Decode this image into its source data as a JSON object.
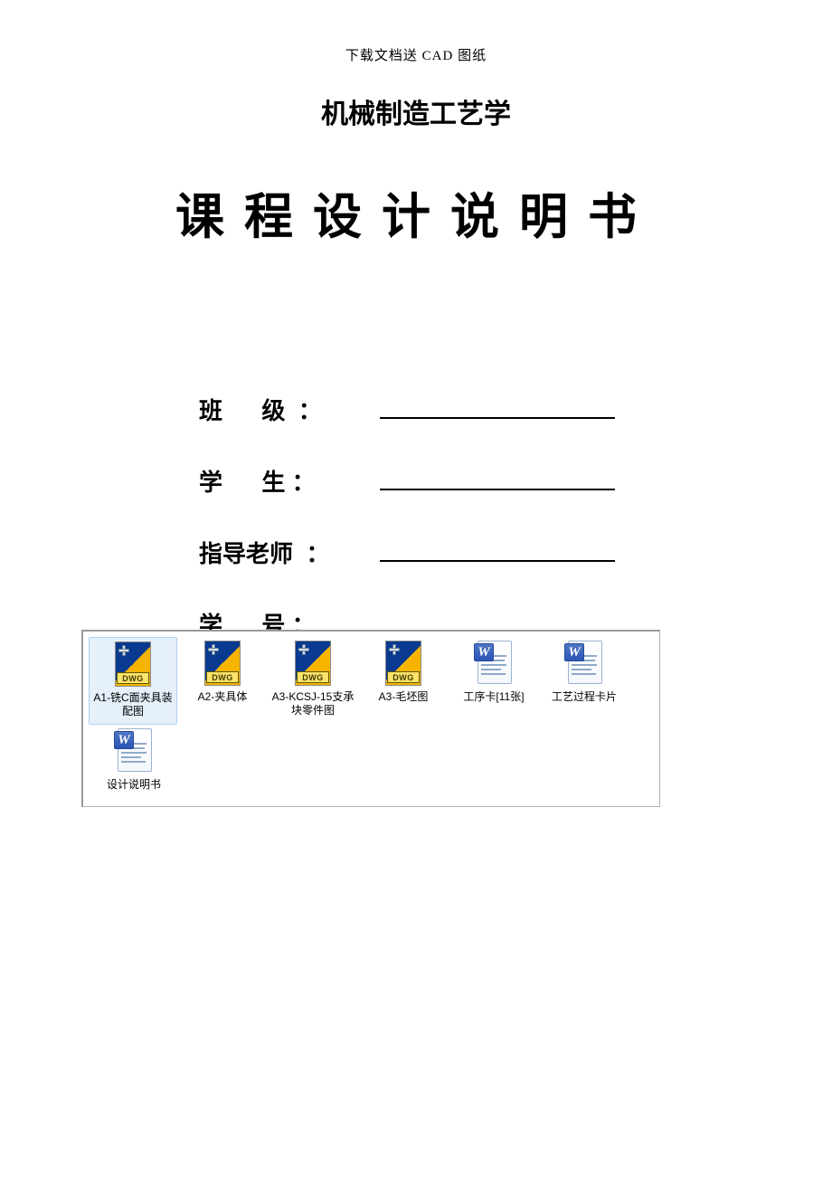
{
  "header_note": "下载文档送 CAD 图纸",
  "subtitle": "机械制造工艺学",
  "main_title": "课程设计说明书",
  "form": {
    "rows": [
      {
        "label": "班      级  ："
      },
      {
        "label": "学      生 ："
      },
      {
        "label": "指导老师  ："
      },
      {
        "label": "学      号 ："
      }
    ]
  },
  "explorer": {
    "files": [
      {
        "type": "dwg",
        "label": "A1-铣C面夹具装配图",
        "selected": true
      },
      {
        "type": "dwg",
        "label": "A2-夹具体",
        "selected": false
      },
      {
        "type": "dwg",
        "label": "A3-KCSJ-15支承块零件图",
        "selected": false
      },
      {
        "type": "dwg",
        "label": "A3-毛坯图",
        "selected": false
      },
      {
        "type": "doc",
        "label": "工序卡[11张]",
        "selected": false
      },
      {
        "type": "doc",
        "label": "工艺过程卡片",
        "selected": false
      },
      {
        "type": "doc",
        "label": "设计说明书",
        "selected": false
      }
    ],
    "dwg_badge_text": "DWG",
    "doc_letter": "W"
  },
  "style": {
    "page_bg": "#ffffff",
    "text_color": "#000000",
    "header_note_fontsize": 15,
    "subtitle_fontsize": 30,
    "main_title_fontsize": 54,
    "main_title_letter_spacing": 22,
    "form_fontsize": 26,
    "explorer_border": "#b5b5b5",
    "selection_bg": "#e5f0fb",
    "selection_border": "#aed2ef",
    "dwg_blue": "#0a3a8f",
    "dwg_yellow": "#f6b400",
    "dwg_badge_bg": "#ffe36b",
    "doc_border": "#9ab1cf",
    "doc_w_bg_top": "#4f77c7",
    "doc_w_bg_bottom": "#2a55b4",
    "file_label_fontsize": 12
  }
}
